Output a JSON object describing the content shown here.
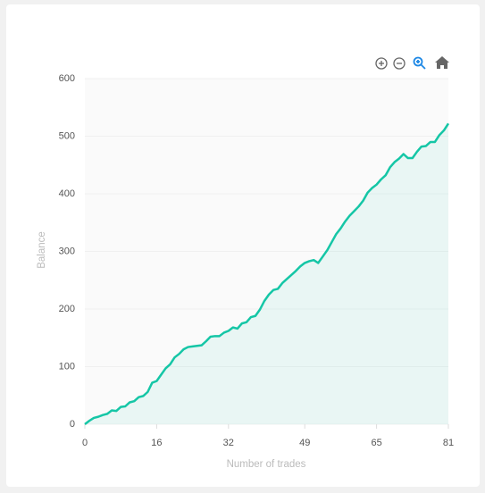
{
  "chart_data": {
    "type": "area",
    "x_label": "Number of trades",
    "y_label": "Balance",
    "x": [
      0,
      1,
      2,
      3,
      4,
      5,
      6,
      7,
      8,
      9,
      10,
      11,
      12,
      13,
      14,
      15,
      16,
      17,
      18,
      19,
      20,
      21,
      22,
      23,
      24,
      25,
      26,
      27,
      28,
      29,
      30,
      31,
      32,
      33,
      34,
      35,
      36,
      37,
      38,
      39,
      40,
      41,
      42,
      43,
      44,
      45,
      46,
      47,
      48,
      49,
      50,
      51,
      52,
      53,
      54,
      55,
      56,
      57,
      58,
      59,
      60,
      61,
      62,
      63,
      64,
      65,
      66,
      67,
      68,
      69,
      70,
      71,
      72,
      73,
      74,
      75,
      76,
      77,
      78,
      79,
      80,
      81
    ],
    "series": [
      {
        "name": "Balance",
        "color": "#15c6a6",
        "values": [
          0,
          6,
          11,
          13,
          16,
          18,
          24,
          23,
          30,
          31,
          38,
          40,
          47,
          49,
          56,
          72,
          75,
          86,
          97,
          104,
          116,
          122,
          130,
          134,
          135,
          136,
          137,
          144,
          152,
          153,
          153,
          159,
          162,
          168,
          166,
          175,
          177,
          186,
          188,
          199,
          214,
          225,
          233,
          235,
          245,
          252,
          259,
          266,
          274,
          280,
          283,
          285,
          280,
          291,
          302,
          316,
          330,
          340,
          352,
          362,
          370,
          378,
          388,
          402,
          410,
          416,
          425,
          432,
          446,
          455,
          461,
          469,
          462,
          462,
          473,
          482,
          483,
          490,
          490,
          502,
          510,
          522
        ]
      }
    ],
    "xlim": [
      0,
      81
    ],
    "xticks": [
      0,
      16,
      32,
      49,
      65,
      81
    ],
    "ylim": [
      0,
      600
    ],
    "yticks": [
      0,
      100,
      200,
      300,
      400,
      500,
      600
    ],
    "grid": true
  }
}
